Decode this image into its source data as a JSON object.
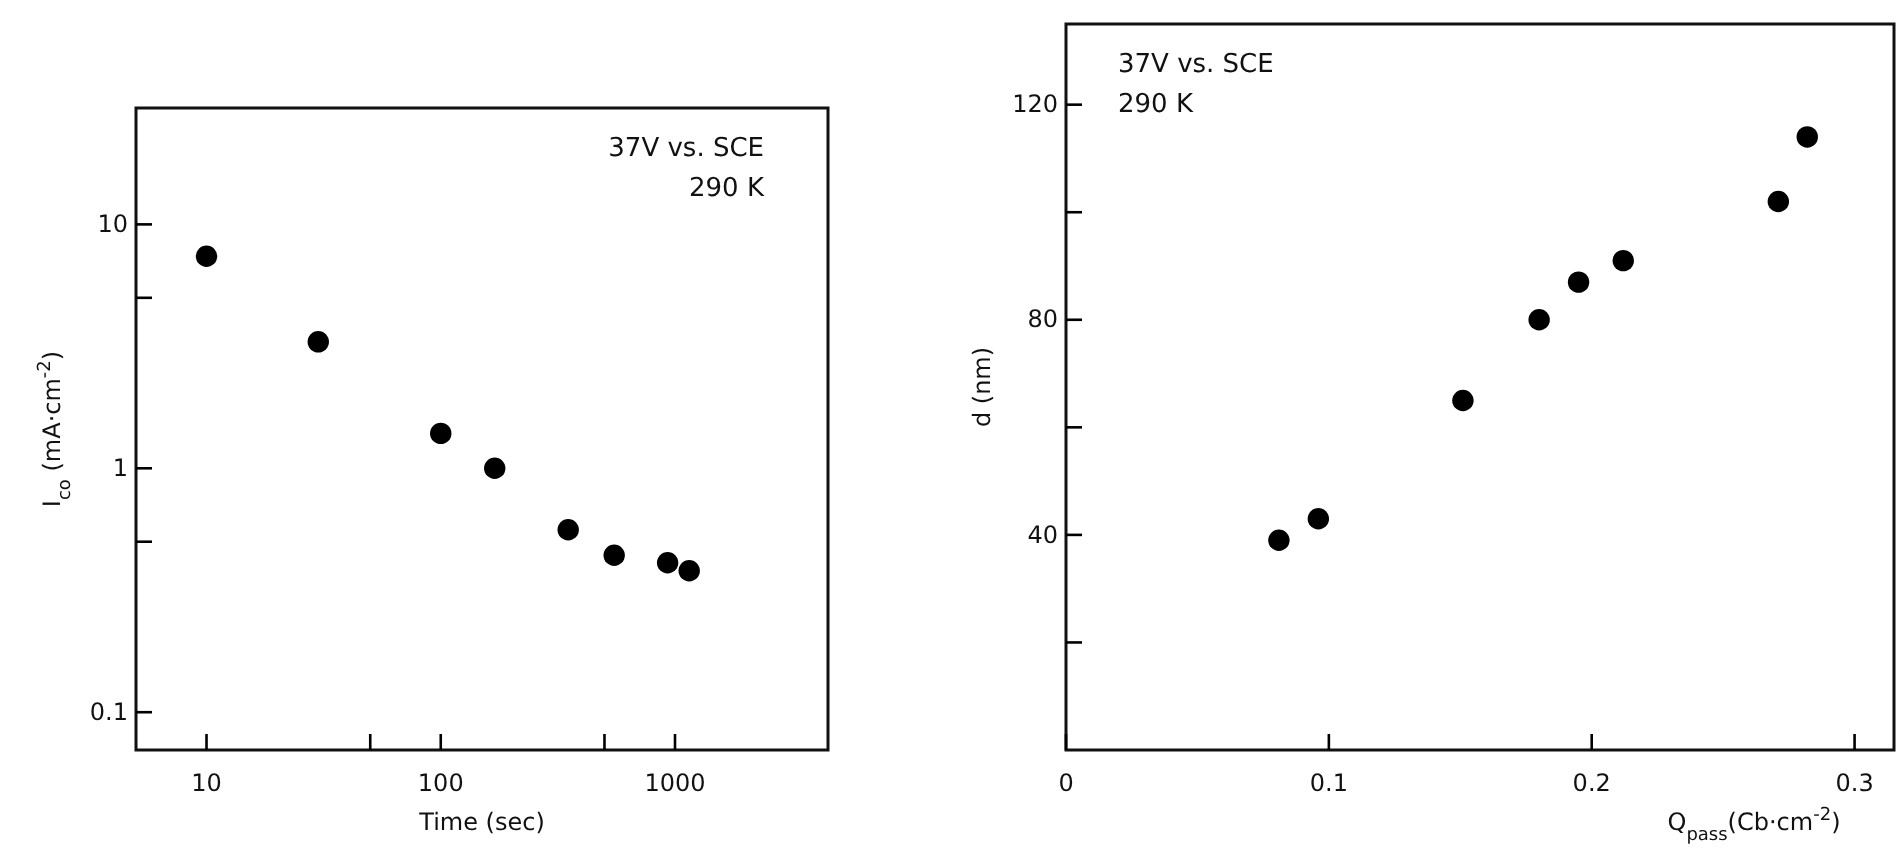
{
  "chart_data": [
    {
      "type": "scatter",
      "xlabel": "Time (sec)",
      "ylabel": "I$_{co}$ (mA·cm$^{-2}$)",
      "annotations": [
        "37V vs. SCE",
        "290 K"
      ],
      "log": "xy",
      "marker": "circle",
      "grid": false,
      "x": [
        10,
        30,
        100,
        170,
        350,
        550,
        930,
        1150
      ],
      "series": [
        {
          "color": "#000000",
          "values": [
            7.4,
            3.3,
            1.39,
            1.0,
            0.56,
            0.44,
            0.41,
            0.38
          ]
        }
      ],
      "xlim": [
        5,
        4500
      ],
      "xticks": [
        10,
        {
          "value": 50,
          "label": null
        },
        100,
        {
          "value": 500,
          "label": null
        },
        1000
      ],
      "ylim": [
        0.07,
        30
      ],
      "yticks": [
        0.1,
        {
          "value": 0.5,
          "label": null
        },
        1,
        {
          "value": 5,
          "label": null
        },
        10
      ]
    },
    {
      "type": "scatter",
      "xlabel": "Q$_{pass}$(Cb·cm$^{-2}$)",
      "ylabel": "d (nm)",
      "annotations": [
        "37V vs. SCE",
        "290 K"
      ],
      "marker": "circle",
      "grid": false,
      "x": [
        0.081,
        0.096,
        0.151,
        0.18,
        0.195,
        0.212,
        0.271,
        0.282
      ],
      "series": [
        {
          "color": "#000000",
          "values": [
            39,
            43,
            65,
            80,
            87,
            91,
            102,
            114
          ]
        }
      ],
      "xlim": [
        0,
        0.315
      ],
      "xticks": [
        0,
        0.1,
        0.2,
        0.3
      ],
      "ylim": [
        0,
        135
      ],
      "yticks": [
        {
          "value": 20,
          "label": null
        },
        40,
        {
          "value": 60,
          "label": null
        },
        80,
        {
          "value": 100,
          "label": null
        },
        120
      ]
    }
  ]
}
